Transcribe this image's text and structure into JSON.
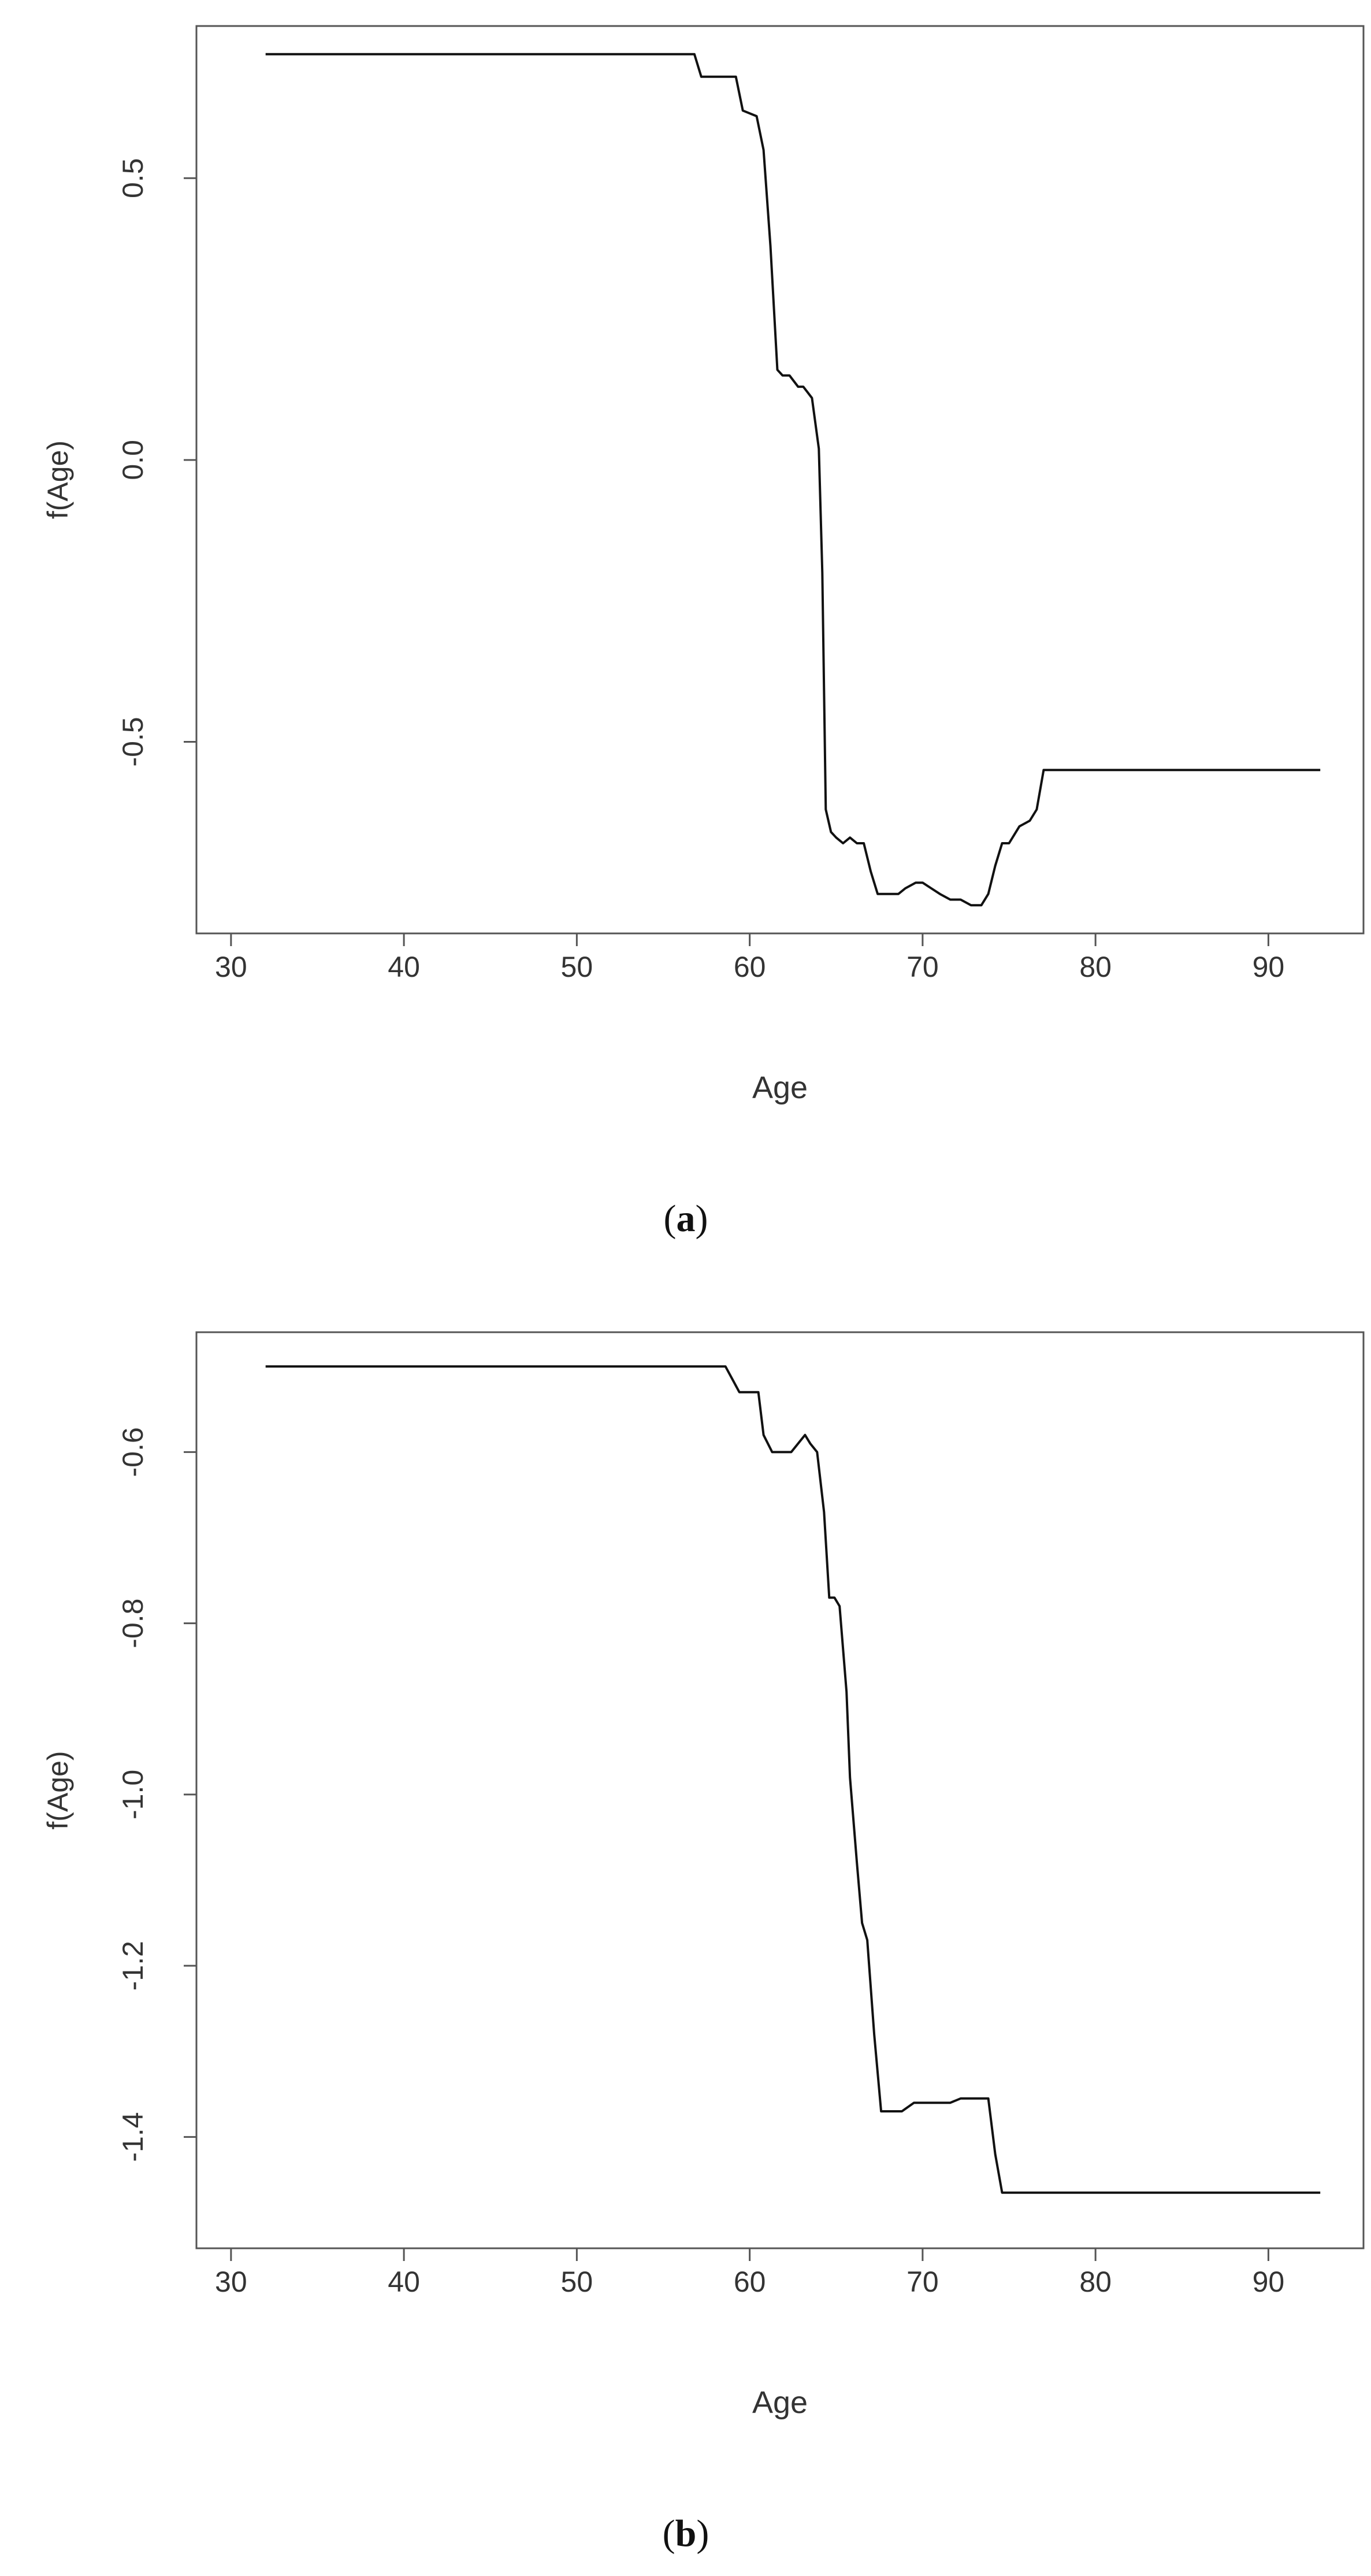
{
  "chart_data": [
    {
      "type": "line",
      "caption_open": "(",
      "caption_label": "a",
      "caption_close": ")",
      "xlabel": "Age",
      "ylabel": "f(Age)",
      "xlim": [
        28.0,
        95.5
      ],
      "ylim": [
        -0.84,
        0.77
      ],
      "xticks": [
        30,
        40,
        50,
        60,
        70,
        80,
        90
      ],
      "yticks": [
        0.5,
        0.0,
        -0.5
      ],
      "ytick_labels": [
        "0.5",
        "0.0",
        "-0.5"
      ],
      "grid": false,
      "legend": "none",
      "series": [
        {
          "x": [
            32,
            56.8,
            57.2,
            59.2,
            59.6,
            60.4,
            60.8,
            61.2,
            61.6,
            61.9,
            62.3,
            62.8,
            63.1,
            63.6,
            64.0,
            64.2,
            64.4,
            64.7,
            65.0,
            65.4,
            65.8,
            66.2,
            66.6,
            67.0,
            67.4,
            67.8,
            68.2,
            68.6,
            69.0,
            69.6,
            70.0,
            70.5,
            71.0,
            71.6,
            72.2,
            72.8,
            73.4,
            73.8,
            74.2,
            74.6,
            75.0,
            75.6,
            76.2,
            76.6,
            77.0,
            93
          ],
          "y": [
            0.72,
            0.72,
            0.68,
            0.68,
            0.62,
            0.61,
            0.55,
            0.38,
            0.16,
            0.15,
            0.15,
            0.13,
            0.13,
            0.11,
            0.02,
            -0.2,
            -0.62,
            -0.66,
            -0.67,
            -0.68,
            -0.67,
            -0.68,
            -0.68,
            -0.73,
            -0.77,
            -0.77,
            -0.77,
            -0.77,
            -0.76,
            -0.75,
            -0.75,
            -0.76,
            -0.77,
            -0.78,
            -0.78,
            -0.79,
            -0.79,
            -0.77,
            -0.72,
            -0.68,
            -0.68,
            -0.65,
            -0.64,
            -0.62,
            -0.55,
            -0.55
          ]
        }
      ]
    },
    {
      "type": "line",
      "caption_open": "(",
      "caption_label": "b",
      "caption_close": ")",
      "xlabel": "Age",
      "ylabel": "f(Age)",
      "xlim": [
        28.0,
        95.5
      ],
      "ylim": [
        -1.53,
        -0.46
      ],
      "xticks": [
        30,
        40,
        50,
        60,
        70,
        80,
        90
      ],
      "yticks": [
        -0.6,
        -0.8,
        -1.0,
        -1.2,
        -1.4
      ],
      "ytick_labels": [
        "-0.6",
        "-0.8",
        "-1.0",
        "-1.2",
        "-1.4"
      ],
      "grid": false,
      "legend": "none",
      "series": [
        {
          "x": [
            32,
            58.6,
            59.4,
            60.5,
            60.8,
            61.3,
            61.6,
            62.0,
            62.4,
            62.8,
            63.2,
            63.5,
            63.9,
            64.3,
            64.6,
            64.9,
            65.2,
            65.6,
            65.8,
            66.2,
            66.5,
            66.8,
            67.2,
            67.6,
            68.0,
            68.4,
            68.8,
            69.5,
            70.0,
            70.5,
            71.0,
            71.6,
            72.2,
            72.8,
            73.4,
            73.8,
            74.2,
            74.6,
            75.0,
            93
          ],
          "y": [
            -0.5,
            -0.5,
            -0.53,
            -0.53,
            -0.58,
            -0.6,
            -0.6,
            -0.6,
            -0.6,
            -0.59,
            -0.58,
            -0.59,
            -0.6,
            -0.67,
            -0.77,
            -0.77,
            -0.78,
            -0.88,
            -0.98,
            -1.08,
            -1.15,
            -1.17,
            -1.28,
            -1.37,
            -1.37,
            -1.37,
            -1.37,
            -1.36,
            -1.36,
            -1.36,
            -1.36,
            -1.36,
            -1.355,
            -1.355,
            -1.355,
            -1.355,
            -1.42,
            -1.465,
            -1.465,
            -1.465
          ]
        }
      ]
    }
  ]
}
